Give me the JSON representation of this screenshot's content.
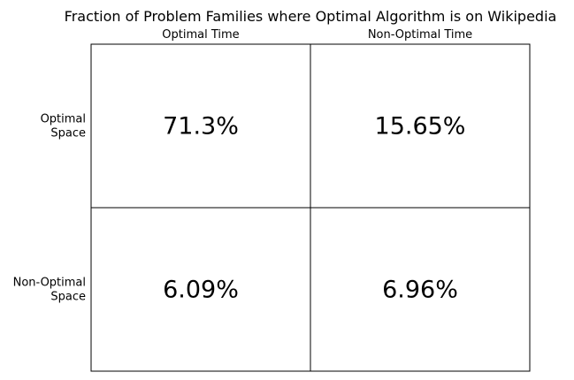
{
  "chart_data": {
    "type": "table",
    "title": "Fraction of Problem Families where Optimal Algorithm is on Wikipedia",
    "columns": [
      "Optimal Time",
      "Non-Optimal Time"
    ],
    "rows": [
      {
        "label_lines": [
          "Optimal",
          "Space"
        ],
        "values": [
          "71.3%",
          "15.65%"
        ]
      },
      {
        "label_lines": [
          "Non-Optimal",
          "Space"
        ],
        "values": [
          "6.09%",
          "6.96%"
        ]
      }
    ],
    "numeric_values": [
      [
        71.3,
        15.65
      ],
      [
        6.09,
        6.96
      ]
    ],
    "unit": "%",
    "grid": true
  }
}
